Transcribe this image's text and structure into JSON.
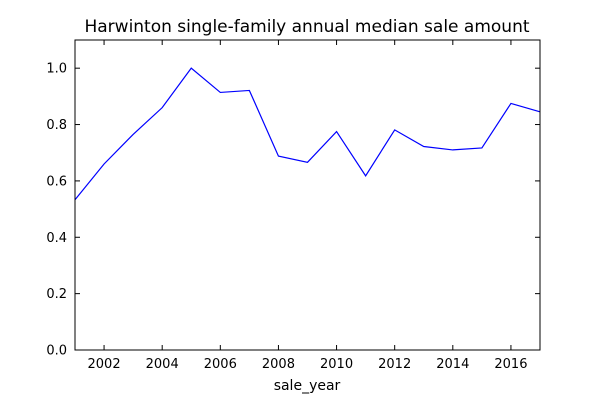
{
  "chart_data": {
    "type": "line",
    "title": "Harwinton single-family annual median sale amount",
    "xlabel": "sale_year",
    "ylabel": "",
    "xlim": [
      2001,
      2017
    ],
    "ylim": [
      0.0,
      1.1
    ],
    "xticks": [
      2002,
      2004,
      2006,
      2008,
      2010,
      2012,
      2014,
      2016
    ],
    "yticks": [
      0.0,
      0.2,
      0.4,
      0.6,
      0.8,
      1.0
    ],
    "ytick_labels": [
      "0.0",
      "0.2",
      "0.4",
      "0.6",
      "0.8",
      "1.0"
    ],
    "grid": false,
    "line_color": "#0000ff",
    "series": [
      {
        "x": [
          2001,
          2002,
          2003,
          2004,
          2005,
          2006,
          2007,
          2008,
          2009,
          2010,
          2011,
          2012,
          2013,
          2014,
          2015,
          2016,
          2017
        ],
        "y": [
          0.533,
          0.66,
          0.765,
          0.86,
          1.0,
          0.914,
          0.921,
          0.688,
          0.666,
          0.775,
          0.618,
          0.781,
          0.722,
          0.71,
          0.717,
          0.875,
          0.845
        ]
      }
    ]
  }
}
